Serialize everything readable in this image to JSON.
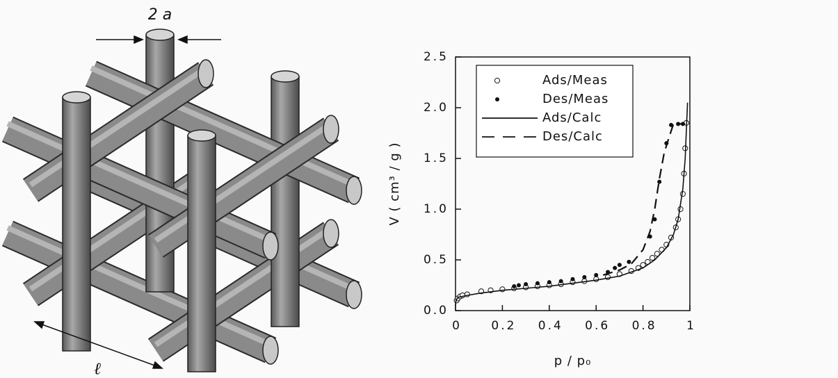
{
  "diagram": {
    "width_label": "2 a",
    "length_label": "ℓ"
  },
  "chart_data": {
    "type": "isotherm",
    "xlabel": "p / p₀",
    "ylabel": "V ( cm³ / g )",
    "xlim": [
      0,
      1
    ],
    "xticks": [
      0,
      0.2,
      0.4,
      0.6,
      0.8,
      1
    ],
    "ylim": [
      0,
      2.5
    ],
    "yticks": [
      {
        "value": 0,
        "label": "0.0"
      },
      0.5,
      {
        "value": 1,
        "label": "1.0"
      },
      1.5,
      {
        "value": 2,
        "label": "2.0"
      },
      2.5
    ],
    "legend": "top-left",
    "series": [
      {
        "name": "Ads/Meas",
        "color": "#111111",
        "mode": "open-markers",
        "x": [
          0.005,
          0.01,
          0.02,
          0.03,
          0.05,
          0.11,
          0.15,
          0.2,
          0.25,
          0.3,
          0.35,
          0.4,
          0.45,
          0.5,
          0.55,
          0.6,
          0.65,
          0.7,
          0.75,
          0.78,
          0.8,
          0.82,
          0.84,
          0.86,
          0.88,
          0.9,
          0.92,
          0.94,
          0.95,
          0.96,
          0.97,
          0.975,
          0.98,
          0.985
        ],
        "values": [
          0.1,
          0.12,
          0.14,
          0.15,
          0.16,
          0.19,
          0.2,
          0.21,
          0.22,
          0.23,
          0.24,
          0.25,
          0.26,
          0.28,
          0.29,
          0.31,
          0.33,
          0.36,
          0.39,
          0.42,
          0.45,
          0.48,
          0.52,
          0.56,
          0.6,
          0.65,
          0.72,
          0.82,
          0.9,
          1.0,
          1.15,
          1.35,
          1.6,
          1.85
        ]
      },
      {
        "name": "Des/Meas",
        "color": "#111111",
        "mode": "filled-markers",
        "x": [
          0.25,
          0.27,
          0.3,
          0.35,
          0.4,
          0.45,
          0.5,
          0.55,
          0.6,
          0.65,
          0.68,
          0.7,
          0.74,
          0.83,
          0.85,
          0.87,
          0.9,
          0.92,
          0.95,
          0.97
        ],
        "values": [
          0.24,
          0.25,
          0.26,
          0.27,
          0.28,
          0.29,
          0.31,
          0.33,
          0.35,
          0.38,
          0.42,
          0.45,
          0.48,
          0.73,
          0.9,
          1.27,
          1.65,
          1.83,
          1.84,
          1.84
        ]
      },
      {
        "name": "Ads/Calc",
        "color": "#111111",
        "mode": "solid-line",
        "x": [
          0,
          0.002,
          0.01,
          0.05,
          0.1,
          0.2,
          0.3,
          0.4,
          0.5,
          0.6,
          0.7,
          0.8,
          0.85,
          0.9,
          0.93,
          0.95,
          0.97,
          0.98,
          0.99
        ],
        "values": [
          0.05,
          0.1,
          0.13,
          0.15,
          0.17,
          0.2,
          0.22,
          0.24,
          0.27,
          0.3,
          0.34,
          0.42,
          0.5,
          0.62,
          0.75,
          0.9,
          1.2,
          1.5,
          2.05
        ]
      },
      {
        "name": "Des/Calc",
        "color": "#111111",
        "mode": "dashed-line",
        "x": [
          0.63,
          0.7,
          0.75,
          0.8,
          0.83,
          0.85,
          0.87,
          0.89,
          0.91,
          0.93,
          0.98
        ],
        "values": [
          0.35,
          0.4,
          0.46,
          0.6,
          0.78,
          1.0,
          1.3,
          1.55,
          1.7,
          1.84,
          1.84
        ]
      }
    ]
  }
}
